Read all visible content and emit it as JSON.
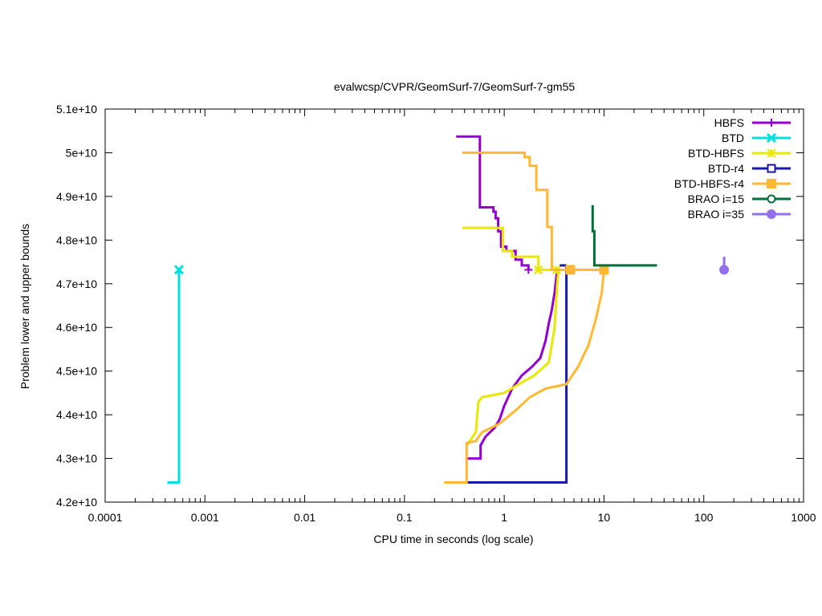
{
  "chart_data": {
    "type": "line",
    "title": "evalwcsp/CVPR/GeomSurf-7/GeomSurf-7-gm55",
    "xlabel": "CPU time in seconds (log scale)",
    "ylabel": "Problem lower and upper bounds",
    "xscale": "log",
    "xlim": [
      0.0001,
      1000
    ],
    "ylim": [
      42000000000,
      51000000000
    ],
    "grid": false,
    "legend_position": "top-right",
    "x_ticks": [
      {
        "value": 0.0001,
        "label": "0.0001"
      },
      {
        "value": 0.001,
        "label": "0.001"
      },
      {
        "value": 0.01,
        "label": "0.01"
      },
      {
        "value": 0.1,
        "label": "0.1"
      },
      {
        "value": 1,
        "label": "1"
      },
      {
        "value": 10,
        "label": "10"
      },
      {
        "value": 100,
        "label": "100"
      },
      {
        "value": 1000,
        "label": "1000"
      }
    ],
    "y_ticks": [
      {
        "value": 42000000000,
        "label": "4.2e+10"
      },
      {
        "value": 43000000000,
        "label": "4.3e+10"
      },
      {
        "value": 44000000000,
        "label": "4.4e+10"
      },
      {
        "value": 45000000000,
        "label": "4.5e+10"
      },
      {
        "value": 46000000000,
        "label": "4.6e+10"
      },
      {
        "value": 47000000000,
        "label": "4.7e+10"
      },
      {
        "value": 48000000000,
        "label": "4.8e+10"
      },
      {
        "value": 49000000000,
        "label": "4.9e+10"
      },
      {
        "value": 50000000000,
        "label": "5e+10"
      },
      {
        "value": 51000000000,
        "label": "5.1e+10"
      }
    ],
    "series": [
      {
        "name": "HBFS",
        "color": "#9400d3",
        "marker": "plus",
        "upper": [
          [
            0.33,
            50370000000
          ],
          [
            0.57,
            50370000000
          ],
          [
            0.57,
            48750000000
          ],
          [
            0.78,
            48750000000
          ],
          [
            0.78,
            48650000000
          ],
          [
            0.82,
            48650000000
          ],
          [
            0.82,
            48500000000
          ],
          [
            0.87,
            48500000000
          ],
          [
            0.87,
            48200000000
          ],
          [
            0.93,
            48200000000
          ],
          [
            0.93,
            47850000000
          ],
          [
            1.05,
            47850000000
          ],
          [
            1.05,
            47750000000
          ],
          [
            1.3,
            47750000000
          ],
          [
            1.3,
            47550000000
          ],
          [
            1.5,
            47550000000
          ],
          [
            1.5,
            47420000000
          ],
          [
            1.75,
            47420000000
          ],
          [
            1.75,
            47320000000
          ]
        ],
        "lower": [
          [
            0.42,
            43000000000
          ],
          [
            0.58,
            43000000000
          ],
          [
            0.58,
            43300000000
          ],
          [
            0.65,
            43500000000
          ],
          [
            0.72,
            43600000000
          ],
          [
            0.8,
            43700000000
          ],
          [
            0.9,
            43900000000
          ],
          [
            1.0,
            44200000000
          ],
          [
            1.2,
            44600000000
          ],
          [
            1.5,
            44900000000
          ],
          [
            1.9,
            45100000000
          ],
          [
            2.3,
            45300000000
          ],
          [
            2.6,
            45700000000
          ],
          [
            2.8,
            46100000000
          ],
          [
            3.0,
            46400000000
          ],
          [
            3.2,
            46800000000
          ],
          [
            3.35,
            47200000000
          ],
          [
            3.4,
            47350000000
          ]
        ],
        "markers": [
          [
            1.75,
            47320000000
          ]
        ]
      },
      {
        "name": "BTD",
        "color": "#00e0e0",
        "marker": "cross",
        "upper": [
          [
            0.00055,
            47320000000
          ]
        ],
        "lower": [
          [
            0.00042,
            42450000000
          ],
          [
            0.00055,
            42450000000
          ],
          [
            0.00055,
            47320000000
          ]
        ],
        "markers": [
          [
            0.00055,
            47320000000
          ]
        ]
      },
      {
        "name": "BTD-HBFS",
        "color": "#e8e800",
        "marker": "star",
        "upper": [
          [
            0.38,
            48280000000
          ],
          [
            0.97,
            48280000000
          ],
          [
            0.97,
            47750000000
          ],
          [
            1.2,
            47750000000
          ],
          [
            1.2,
            47620000000
          ],
          [
            2.2,
            47620000000
          ],
          [
            2.2,
            47320000000
          ],
          [
            3.3,
            47320000000
          ]
        ],
        "lower": [
          [
            0.42,
            43300000000
          ],
          [
            0.52,
            43600000000
          ],
          [
            0.55,
            44300000000
          ],
          [
            0.6,
            44400000000
          ],
          [
            1.0,
            44500000000
          ],
          [
            1.4,
            44700000000
          ],
          [
            2.0,
            44900000000
          ],
          [
            2.8,
            45200000000
          ],
          [
            3.2,
            46000000000
          ],
          [
            3.4,
            47000000000
          ],
          [
            3.5,
            47320000000
          ]
        ],
        "markers": [
          [
            2.2,
            47320000000
          ],
          [
            3.35,
            47320000000
          ]
        ]
      },
      {
        "name": "BTD-r4",
        "color": "#1a1aaa",
        "marker": "square-open",
        "upper": [
          [
            3.6,
            47420000000
          ],
          [
            4.2,
            47420000000
          ]
        ],
        "lower": [
          [
            0.42,
            42450000000
          ],
          [
            4.2,
            42450000000
          ],
          [
            4.2,
            47420000000
          ]
        ],
        "markers": []
      },
      {
        "name": "BTD-HBFS-r4",
        "color": "#ffb830",
        "marker": "square-filled",
        "upper": [
          [
            0.38,
            50000000000
          ],
          [
            1.6,
            50000000000
          ],
          [
            1.6,
            49900000000
          ],
          [
            1.8,
            49900000000
          ],
          [
            1.8,
            49700000000
          ],
          [
            2.1,
            49700000000
          ],
          [
            2.1,
            49150000000
          ],
          [
            2.7,
            49150000000
          ],
          [
            2.7,
            48300000000
          ],
          [
            3.0,
            48300000000
          ],
          [
            3.0,
            47320000000
          ],
          [
            10.0,
            47320000000
          ]
        ],
        "lower": [
          [
            0.25,
            42450000000
          ],
          [
            0.42,
            42450000000
          ],
          [
            0.42,
            43350000000
          ],
          [
            0.52,
            43400000000
          ],
          [
            0.6,
            43600000000
          ],
          [
            0.9,
            43800000000
          ],
          [
            1.3,
            44100000000
          ],
          [
            1.8,
            44400000000
          ],
          [
            2.6,
            44600000000
          ],
          [
            4.2,
            44700000000
          ],
          [
            5.5,
            45100000000
          ],
          [
            7.0,
            45600000000
          ],
          [
            8.3,
            46200000000
          ],
          [
            9.5,
            46800000000
          ],
          [
            10.0,
            47320000000
          ]
        ],
        "markers": [
          [
            4.6,
            47320000000
          ],
          [
            10.0,
            47320000000
          ]
        ]
      },
      {
        "name": "BRAO i=15",
        "color": "#006f3c",
        "marker": "circle-open",
        "upper": [
          [
            7.7,
            48800000000
          ],
          [
            7.7,
            48200000000
          ],
          [
            8.0,
            48200000000
          ],
          [
            8.0,
            47420000000
          ],
          [
            34,
            47420000000
          ]
        ],
        "lower": [],
        "markers": []
      },
      {
        "name": "BRAO i=35",
        "color": "#9370eb",
        "marker": "circle-filled",
        "upper": [
          [
            160,
            47620000000
          ],
          [
            160,
            47320000000
          ]
        ],
        "lower": [],
        "markers": [
          [
            160,
            47320000000
          ]
        ]
      }
    ]
  }
}
